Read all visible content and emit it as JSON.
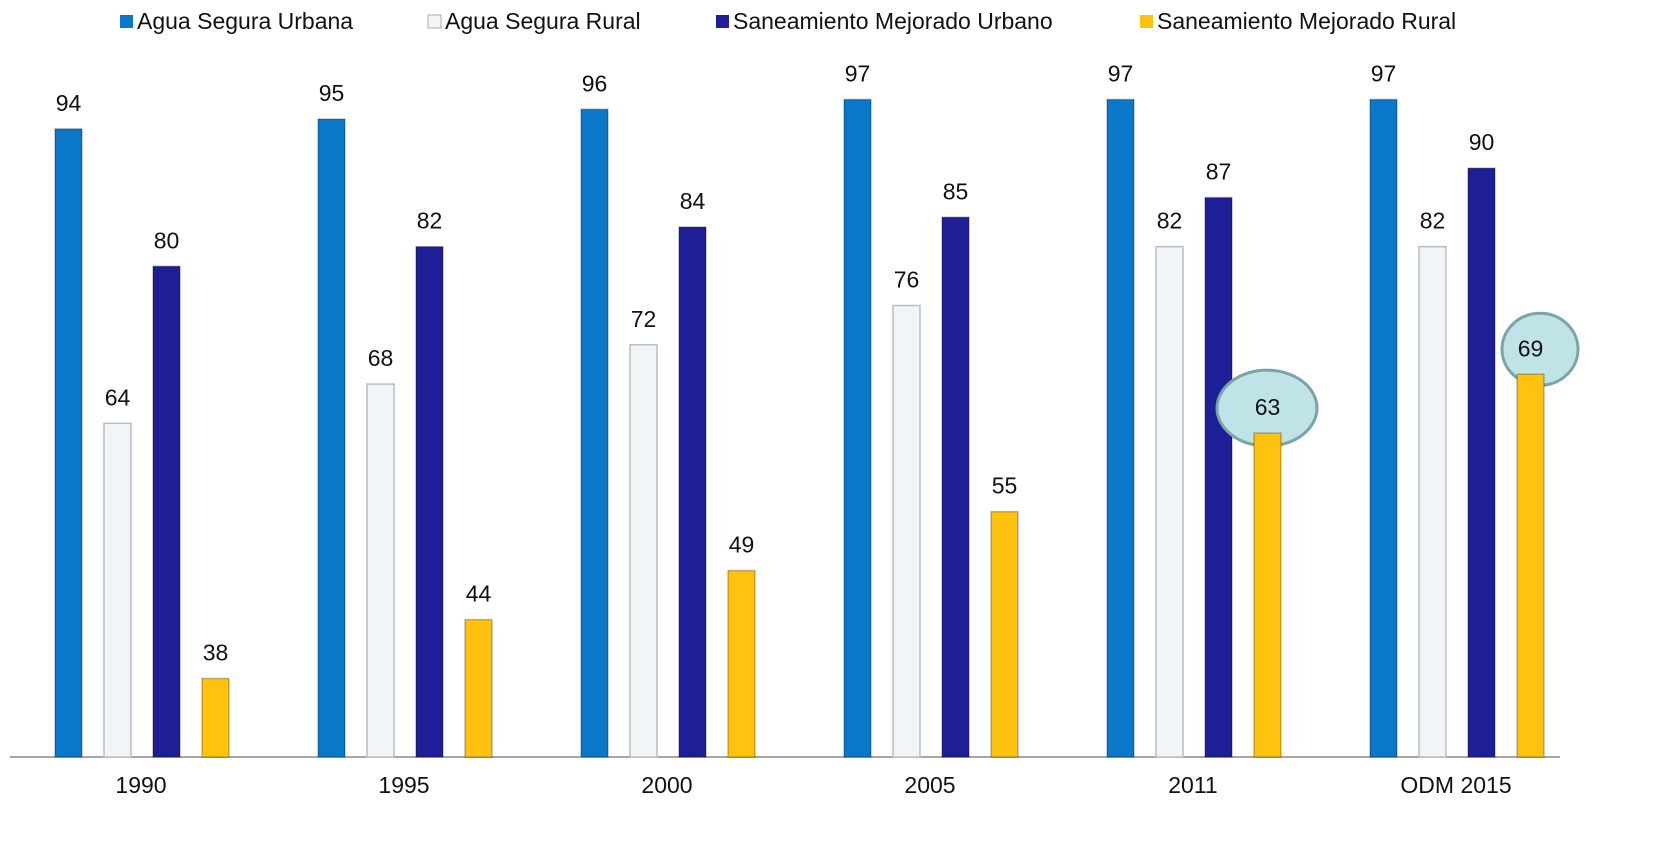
{
  "chart_data": {
    "type": "bar",
    "categories": [
      "1990",
      "1995",
      "2000",
      "2005",
      "2011",
      "ODM 2015"
    ],
    "series": [
      {
        "name": "Agua Segura Urbana",
        "color": "#0a78c8",
        "values": [
          94,
          95,
          96,
          97,
          97,
          97
        ]
      },
      {
        "name": "Agua Segura Rural",
        "color": "#f2f5f8",
        "values": [
          64,
          68,
          72,
          76,
          82,
          82
        ]
      },
      {
        "name": "Saneamiento Mejorado Urbano",
        "color": "#1e1e96",
        "values": [
          80,
          82,
          84,
          85,
          87,
          90
        ]
      },
      {
        "name": "Saneamiento Mejorado Rural",
        "color": "#ffc20e",
        "values": [
          38,
          44,
          49,
          55,
          63,
          69
        ]
      }
    ],
    "ylim": [
      30,
      100
    ]
  }
}
